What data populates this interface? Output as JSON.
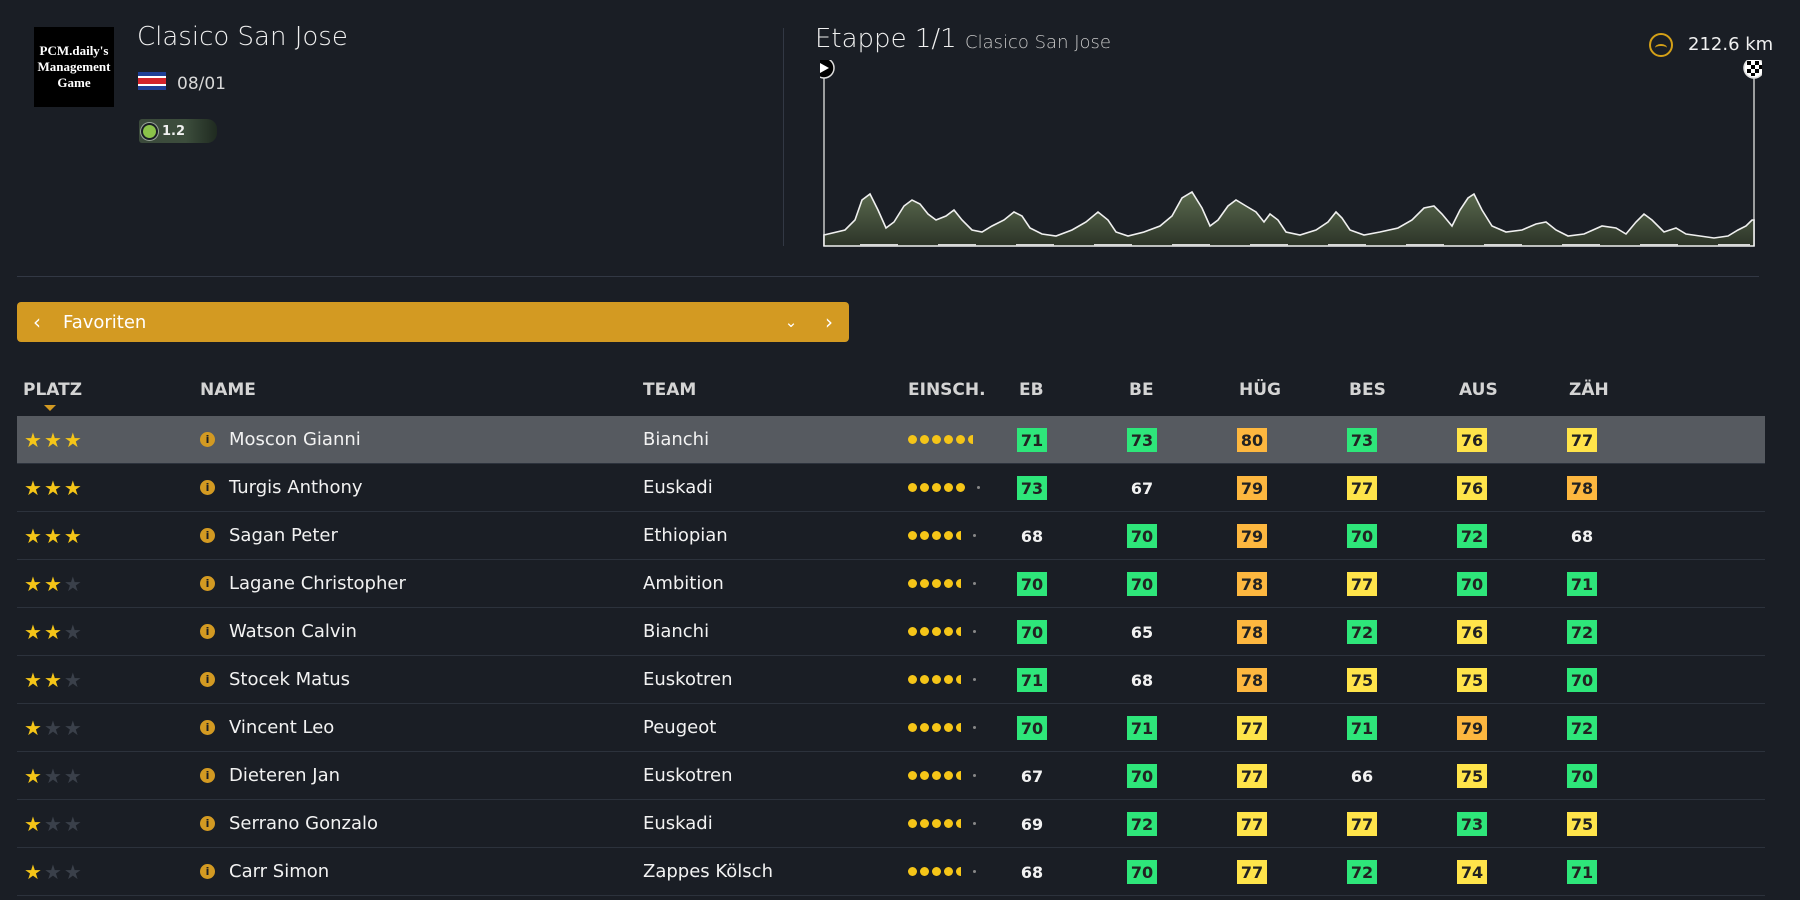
{
  "race": {
    "logo_lines": [
      "PCM.daily's",
      "Management",
      "Game"
    ],
    "title": "Clasico San Jose",
    "date": "08/01",
    "category": "1.2"
  },
  "stage": {
    "label": "Etappe 1/1",
    "name": "Clasico San Jose",
    "distance": "212.6 km"
  },
  "dropdown": {
    "label": "Favoriten"
  },
  "table": {
    "headers": [
      "PLATZ",
      "NAME",
      "TEAM",
      "EINSCH.",
      "EB",
      "BE",
      "HÜG",
      "BES",
      "AUS",
      "ZÄH"
    ],
    "rows": [
      {
        "stars": 3,
        "name": "Moscon Gianni",
        "team": "Bianchi",
        "form": [
          5,
          0.5,
          0
        ],
        "stats": [
          [
            "71",
            "g"
          ],
          [
            "73",
            "g"
          ],
          [
            "80",
            "o"
          ],
          [
            "73",
            "g"
          ],
          [
            "76",
            "y"
          ],
          [
            "77",
            "y"
          ]
        ]
      },
      {
        "stars": 3,
        "name": "Turgis Anthony",
        "team": "Euskadi",
        "form": [
          5,
          0,
          1
        ],
        "stats": [
          [
            "73",
            "g"
          ],
          [
            "67",
            "n"
          ],
          [
            "79",
            "o"
          ],
          [
            "77",
            "y"
          ],
          [
            "76",
            "y"
          ],
          [
            "78",
            "o"
          ]
        ]
      },
      {
        "stars": 3,
        "name": "Sagan Peter",
        "team": "Ethiopian",
        "form": [
          4,
          0.5,
          1
        ],
        "stats": [
          [
            "68",
            "n"
          ],
          [
            "70",
            "g"
          ],
          [
            "79",
            "o"
          ],
          [
            "70",
            "g"
          ],
          [
            "72",
            "g"
          ],
          [
            "68",
            "n"
          ]
        ]
      },
      {
        "stars": 2,
        "name": "Lagane Christopher",
        "team": "Ambition",
        "form": [
          4,
          0.5,
          1
        ],
        "stats": [
          [
            "70",
            "g"
          ],
          [
            "70",
            "g"
          ],
          [
            "78",
            "o"
          ],
          [
            "77",
            "y"
          ],
          [
            "70",
            "g"
          ],
          [
            "71",
            "g"
          ]
        ]
      },
      {
        "stars": 2,
        "name": "Watson Calvin",
        "team": "Bianchi",
        "form": [
          4,
          0.5,
          1
        ],
        "stats": [
          [
            "70",
            "g"
          ],
          [
            "65",
            "n"
          ],
          [
            "78",
            "o"
          ],
          [
            "72",
            "g"
          ],
          [
            "76",
            "y"
          ],
          [
            "72",
            "g"
          ]
        ]
      },
      {
        "stars": 2,
        "name": "Stocek Matus",
        "team": "Euskotren",
        "form": [
          4,
          0.5,
          1
        ],
        "stats": [
          [
            "71",
            "g"
          ],
          [
            "68",
            "n"
          ],
          [
            "78",
            "o"
          ],
          [
            "75",
            "y"
          ],
          [
            "75",
            "y"
          ],
          [
            "70",
            "g"
          ]
        ]
      },
      {
        "stars": 1,
        "name": "Vincent Leo",
        "team": "Peugeot",
        "form": [
          4,
          0.5,
          1
        ],
        "stats": [
          [
            "70",
            "g"
          ],
          [
            "71",
            "g"
          ],
          [
            "77",
            "y"
          ],
          [
            "71",
            "g"
          ],
          [
            "79",
            "o"
          ],
          [
            "72",
            "g"
          ]
        ]
      },
      {
        "stars": 1,
        "name": "Dieteren Jan",
        "team": "Euskotren",
        "form": [
          4,
          0.5,
          1
        ],
        "stats": [
          [
            "67",
            "n"
          ],
          [
            "70",
            "g"
          ],
          [
            "77",
            "y"
          ],
          [
            "66",
            "n"
          ],
          [
            "75",
            "y"
          ],
          [
            "70",
            "g"
          ]
        ]
      },
      {
        "stars": 1,
        "name": "Serrano Gonzalo",
        "team": "Euskadi",
        "form": [
          4,
          0.5,
          1
        ],
        "stats": [
          [
            "69",
            "n"
          ],
          [
            "72",
            "g"
          ],
          [
            "77",
            "y"
          ],
          [
            "77",
            "y"
          ],
          [
            "73",
            "g"
          ],
          [
            "75",
            "y"
          ]
        ]
      },
      {
        "stars": 1,
        "name": "Carr Simon",
        "team": "Zappes Kölsch",
        "form": [
          4,
          0.5,
          1
        ],
        "stats": [
          [
            "68",
            "n"
          ],
          [
            "70",
            "g"
          ],
          [
            "77",
            "y"
          ],
          [
            "72",
            "g"
          ],
          [
            "74",
            "y"
          ],
          [
            "71",
            "g"
          ]
        ]
      }
    ]
  },
  "colors": {
    "accent": "#d39a22",
    "green": "#2ee67a",
    "yellow": "#ffe44a",
    "orange": "#fdb73f",
    "bg": "#1a1e25"
  },
  "icons": {
    "distance": "distance-icon",
    "start": "play-icon",
    "finish": "checkered-flag-icon",
    "info": "info-icon"
  }
}
